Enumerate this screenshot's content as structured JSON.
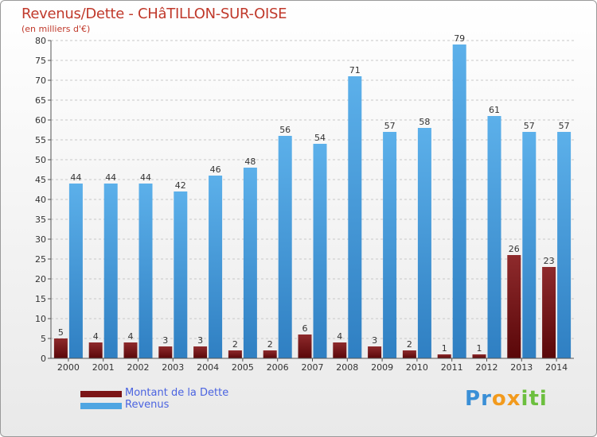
{
  "chart_data": {
    "type": "bar",
    "title": "Revenus/Dette - CHâTILLON-SUR-OISE",
    "subtitle": "(en milliers d'€)",
    "xlabel": "",
    "ylabel": "",
    "ylim": [
      0,
      80
    ],
    "yticks": [
      0,
      5,
      10,
      15,
      20,
      25,
      30,
      35,
      40,
      45,
      50,
      55,
      60,
      65,
      70,
      75,
      80
    ],
    "grid": true,
    "categories": [
      "2000",
      "2001",
      "2002",
      "2003",
      "2004",
      "2005",
      "2006",
      "2007",
      "2008",
      "2009",
      "2010",
      "2011",
      "2012",
      "2013",
      "2014"
    ],
    "series": [
      {
        "name": "Montant de la Dette",
        "color": "#7b1416",
        "values": [
          5,
          4,
          4,
          3,
          3,
          2,
          2,
          6,
          4,
          3,
          2,
          1,
          1,
          26,
          23
        ]
      },
      {
        "name": "Revenus",
        "color": "#4ea5e2",
        "values": [
          44,
          44,
          44,
          42,
          46,
          48,
          56,
          54,
          71,
          57,
          58,
          79,
          61,
          57,
          57
        ]
      }
    ],
    "legend_position": "bottom-left"
  },
  "brand": {
    "letters": [
      {
        "ch": "P",
        "color": "#3a8fd6"
      },
      {
        "ch": "r",
        "color": "#3a8fd6"
      },
      {
        "ch": "o",
        "color": "#f29a1d"
      },
      {
        "ch": "x",
        "color": "#f29a1d"
      },
      {
        "ch": "i",
        "color": "#6cbf3e"
      },
      {
        "ch": "t",
        "color": "#6cbf3e"
      },
      {
        "ch": "i",
        "color": "#6cbf3e"
      }
    ]
  }
}
